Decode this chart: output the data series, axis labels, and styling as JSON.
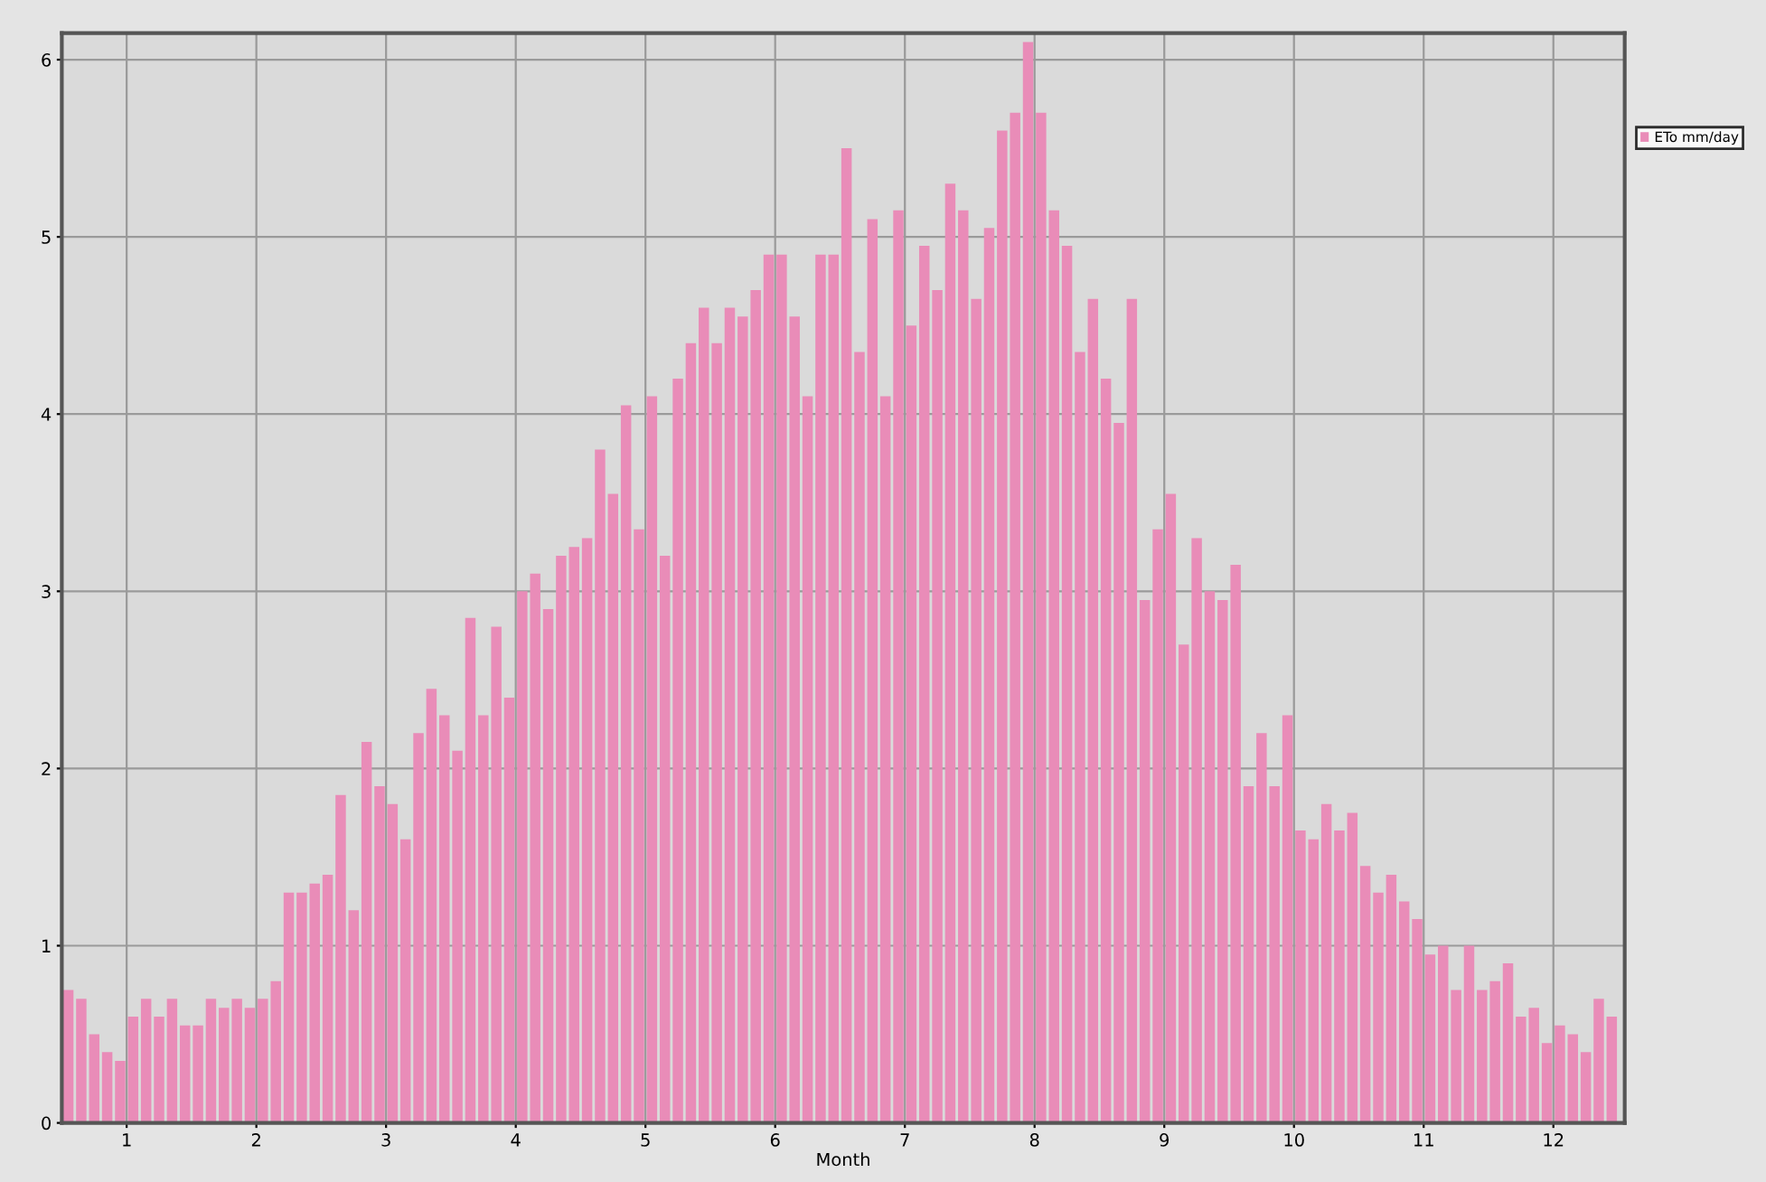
{
  "chart_data": {
    "type": "bar",
    "xlabel": "Month",
    "legend": "right",
    "x": [
      0.55,
      0.65,
      0.75,
      0.85,
      0.95,
      1.05,
      1.15,
      1.25,
      1.35,
      1.45,
      1.55,
      1.65,
      1.75,
      1.85,
      1.95,
      2.05,
      2.15,
      2.25,
      2.35,
      2.45,
      2.55,
      2.65,
      2.75,
      2.85,
      2.95,
      3.05,
      3.15,
      3.25,
      3.35,
      3.45,
      3.55,
      3.65,
      3.75,
      3.85,
      3.95,
      4.05,
      4.15,
      4.25,
      4.35,
      4.45,
      4.55,
      4.65,
      4.75,
      4.85,
      4.95,
      5.05,
      5.15,
      5.25,
      5.35,
      5.45,
      5.55,
      5.65,
      5.75,
      5.85,
      5.95,
      6.05,
      6.15,
      6.25,
      6.35,
      6.45,
      6.55,
      6.65,
      6.75,
      6.85,
      6.95,
      7.05,
      7.15,
      7.25,
      7.35,
      7.45,
      7.55,
      7.65,
      7.75,
      7.85,
      7.95,
      8.05,
      8.15,
      8.25,
      8.35,
      8.45,
      8.55,
      8.65,
      8.75,
      8.85,
      8.95,
      9.05,
      9.15,
      9.25,
      9.35,
      9.45,
      9.55,
      9.65,
      9.75,
      9.85,
      9.95,
      10.05,
      10.15,
      10.25,
      10.35,
      10.45,
      10.55,
      10.65,
      10.75,
      10.85,
      10.95,
      11.05,
      11.15,
      11.25,
      11.35,
      11.45,
      11.55,
      11.65,
      11.75,
      11.85,
      11.95,
      12.05,
      12.15,
      12.25,
      12.35,
      12.45
    ],
    "series": [
      {
        "name": "ETo mm/day",
        "color": "#e98cb8",
        "values": [
          0.75,
          0.7,
          0.5,
          0.4,
          0.35,
          0.6,
          0.7,
          0.6,
          0.7,
          0.55,
          0.55,
          0.7,
          0.65,
          0.7,
          0.65,
          0.7,
          0.8,
          1.3,
          1.3,
          1.35,
          1.4,
          1.85,
          1.2,
          2.15,
          1.9,
          1.8,
          1.6,
          2.2,
          2.45,
          2.3,
          2.1,
          2.85,
          2.3,
          2.8,
          2.4,
          3.0,
          3.1,
          2.9,
          3.2,
          3.25,
          3.3,
          3.8,
          3.55,
          4.05,
          3.35,
          4.1,
          3.2,
          4.2,
          4.4,
          4.6,
          4.4,
          4.6,
          4.55,
          4.7,
          4.9,
          4.9,
          4.55,
          4.1,
          4.9,
          4.9,
          5.5,
          4.35,
          5.1,
          4.1,
          5.15,
          4.5,
          4.95,
          4.7,
          5.3,
          5.15,
          4.65,
          5.05,
          5.6,
          5.7,
          6.1,
          5.7,
          5.15,
          4.95,
          4.35,
          4.65,
          4.2,
          3.95,
          4.65,
          2.95,
          3.35,
          3.55,
          2.7,
          3.3,
          3.0,
          2.95,
          3.15,
          1.9,
          2.2,
          1.9,
          2.3,
          1.65,
          1.6,
          1.8,
          1.65,
          1.75,
          1.45,
          1.3,
          1.4,
          1.25,
          1.15,
          0.95,
          1.0,
          0.75,
          1.0,
          0.75,
          0.8,
          0.9,
          0.6,
          0.65,
          0.45,
          0.55,
          0.5,
          0.4,
          0.7,
          0.6
        ]
      }
    ],
    "xlim": [
      0.5,
      12.55
    ],
    "xticks": [
      1,
      2,
      3,
      4,
      5,
      6,
      7,
      8,
      9,
      10,
      11,
      12
    ],
    "ylim": [
      0,
      6.15
    ],
    "yticks": [
      0,
      1,
      2,
      3,
      4,
      5,
      6
    ],
    "grid": true
  }
}
